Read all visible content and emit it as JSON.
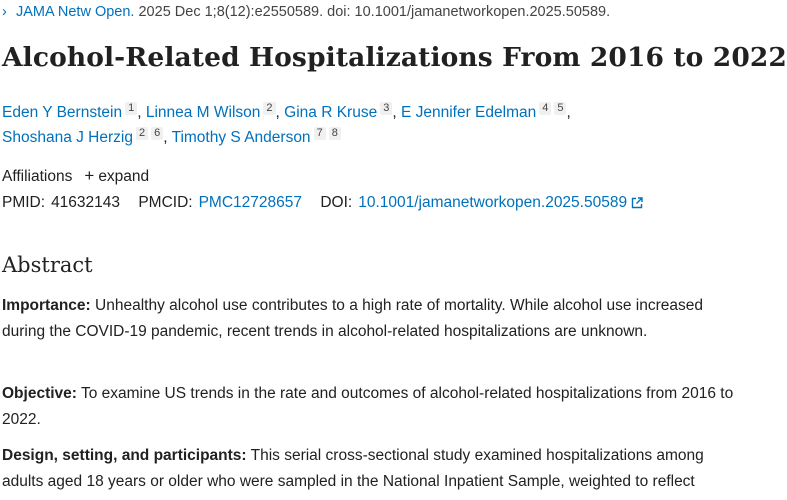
{
  "citation": {
    "chevron": "›",
    "journal": "JAMA Netw Open.",
    "details": " 2025 Dec 1;8(12):e2550589. doi: 10.1001/jamanetworkopen.2025.50589."
  },
  "title": "Alcohol-Related Hospitalizations From 2016 to 2022",
  "authors": [
    {
      "name": "Eden Y Bernstein",
      "affils": [
        "1"
      ]
    },
    {
      "name": "Linnea M Wilson",
      "affils": [
        "2"
      ]
    },
    {
      "name": "Gina R Kruse",
      "affils": [
        "3"
      ]
    },
    {
      "name": "E Jennifer Edelman",
      "affils": [
        "4",
        "5"
      ]
    },
    {
      "name": "Shoshana J Herzig",
      "affils": [
        "2",
        "6"
      ]
    },
    {
      "name": "Timothy S Anderson",
      "affils": [
        "7",
        "8"
      ]
    }
  ],
  "affiliations": {
    "label": "Affiliations",
    "expand_icon": "plus-icon",
    "expand_label": "expand"
  },
  "ids": {
    "pmid_label": "PMID:",
    "pmid": "41632143",
    "pmcid_label": "PMCID:",
    "pmcid": "PMC12728657",
    "doi_label": "DOI:",
    "doi": "10.1001/jamanetworkopen.2025.50589"
  },
  "abstract": {
    "heading": "Abstract",
    "importance_label": "Importance:",
    "importance_text": " Unhealthy alcohol use contributes to a high rate of mortality. While alcohol use increased during the COVID-19 pandemic, recent trends in alcohol-related hospitalizations are unknown.",
    "objective_label": "Objective:",
    "objective_text": " To examine US trends in the rate and outcomes of alcohol-related hospitalizations from 2016 to 2022.",
    "design_label": "Design, setting, and participants:",
    "design_text": " This serial cross-sectional study examined hospitalizations among adults aged 18 years or older who were sampled in the National Inpatient Sample, weighted to reflect"
  },
  "colors": {
    "link": "#0071bc",
    "text": "#212121",
    "badge_bg": "#f0f0f0"
  }
}
